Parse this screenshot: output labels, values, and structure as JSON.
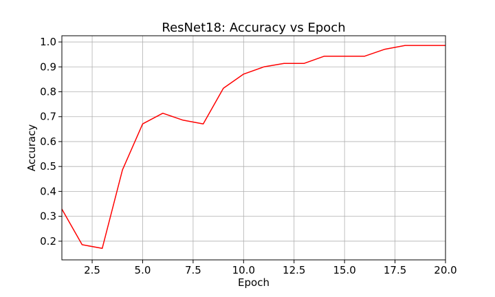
{
  "chart_data": {
    "type": "line",
    "title": "ResNet18: Accuracy vs Epoch",
    "xlabel": "Epoch",
    "ylabel": "Accuracy",
    "xlim": [
      1,
      20
    ],
    "ylim": [
      0.125,
      1.025
    ],
    "xticks": [
      2.5,
      5.0,
      7.5,
      10.0,
      12.5,
      15.0,
      17.5,
      20.0
    ],
    "xtick_labels": [
      "2.5",
      "5.0",
      "7.5",
      "10.0",
      "12.5",
      "15.0",
      "17.5",
      "20.0"
    ],
    "yticks": [
      0.2,
      0.3,
      0.4,
      0.5,
      0.6,
      0.7,
      0.8,
      0.9,
      1.0
    ],
    "ytick_labels": [
      "0.2",
      "0.3",
      "0.4",
      "0.5",
      "0.6",
      "0.7",
      "0.8",
      "0.9",
      "1.0"
    ],
    "grid": true,
    "series": [
      {
        "color": "#ff0000",
        "x": [
          1,
          2,
          3,
          4,
          5,
          6,
          7,
          8,
          9,
          10,
          11,
          12,
          13,
          14,
          15,
          16,
          17,
          18,
          19,
          20
        ],
        "y": [
          0.329,
          0.186,
          0.171,
          0.486,
          0.671,
          0.714,
          0.686,
          0.671,
          0.814,
          0.871,
          0.9,
          0.914,
          0.914,
          0.943,
          0.943,
          0.943,
          0.971,
          0.986,
          0.986,
          0.986
        ]
      }
    ]
  }
}
